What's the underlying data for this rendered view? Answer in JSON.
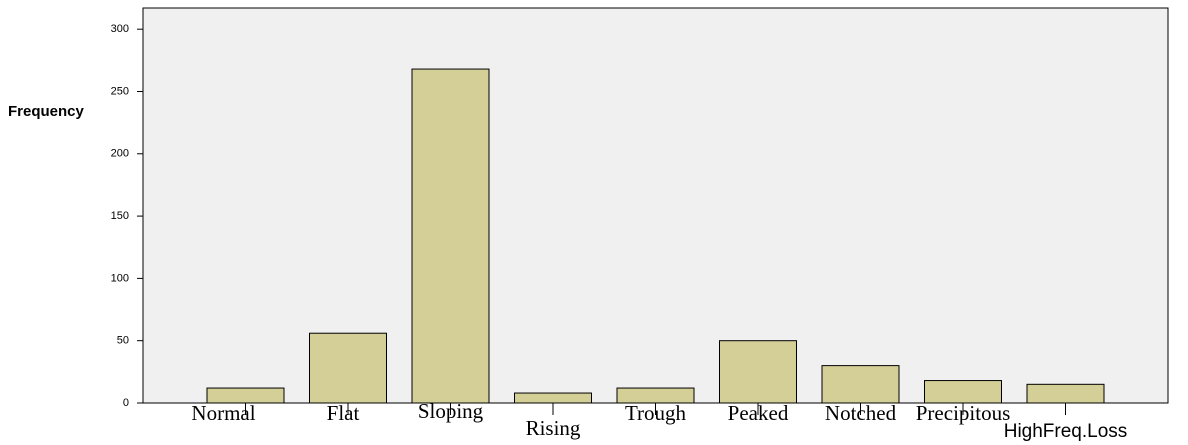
{
  "chart_data": {
    "type": "bar",
    "y_label": "Frequency",
    "categories": [
      "Normal",
      "Flat",
      "Sloping",
      "Rising",
      "Trough",
      "Peaked",
      "Notched",
      "Precipitous",
      "HighFreq.Loss"
    ],
    "values": [
      12,
      56,
      268,
      8,
      12,
      50,
      30,
      18,
      15
    ],
    "color": "#d3cf97",
    "ylim": [
      0,
      317
    ],
    "yticks": [
      0,
      50,
      100,
      150,
      200,
      250,
      300
    ],
    "grid": false
  }
}
